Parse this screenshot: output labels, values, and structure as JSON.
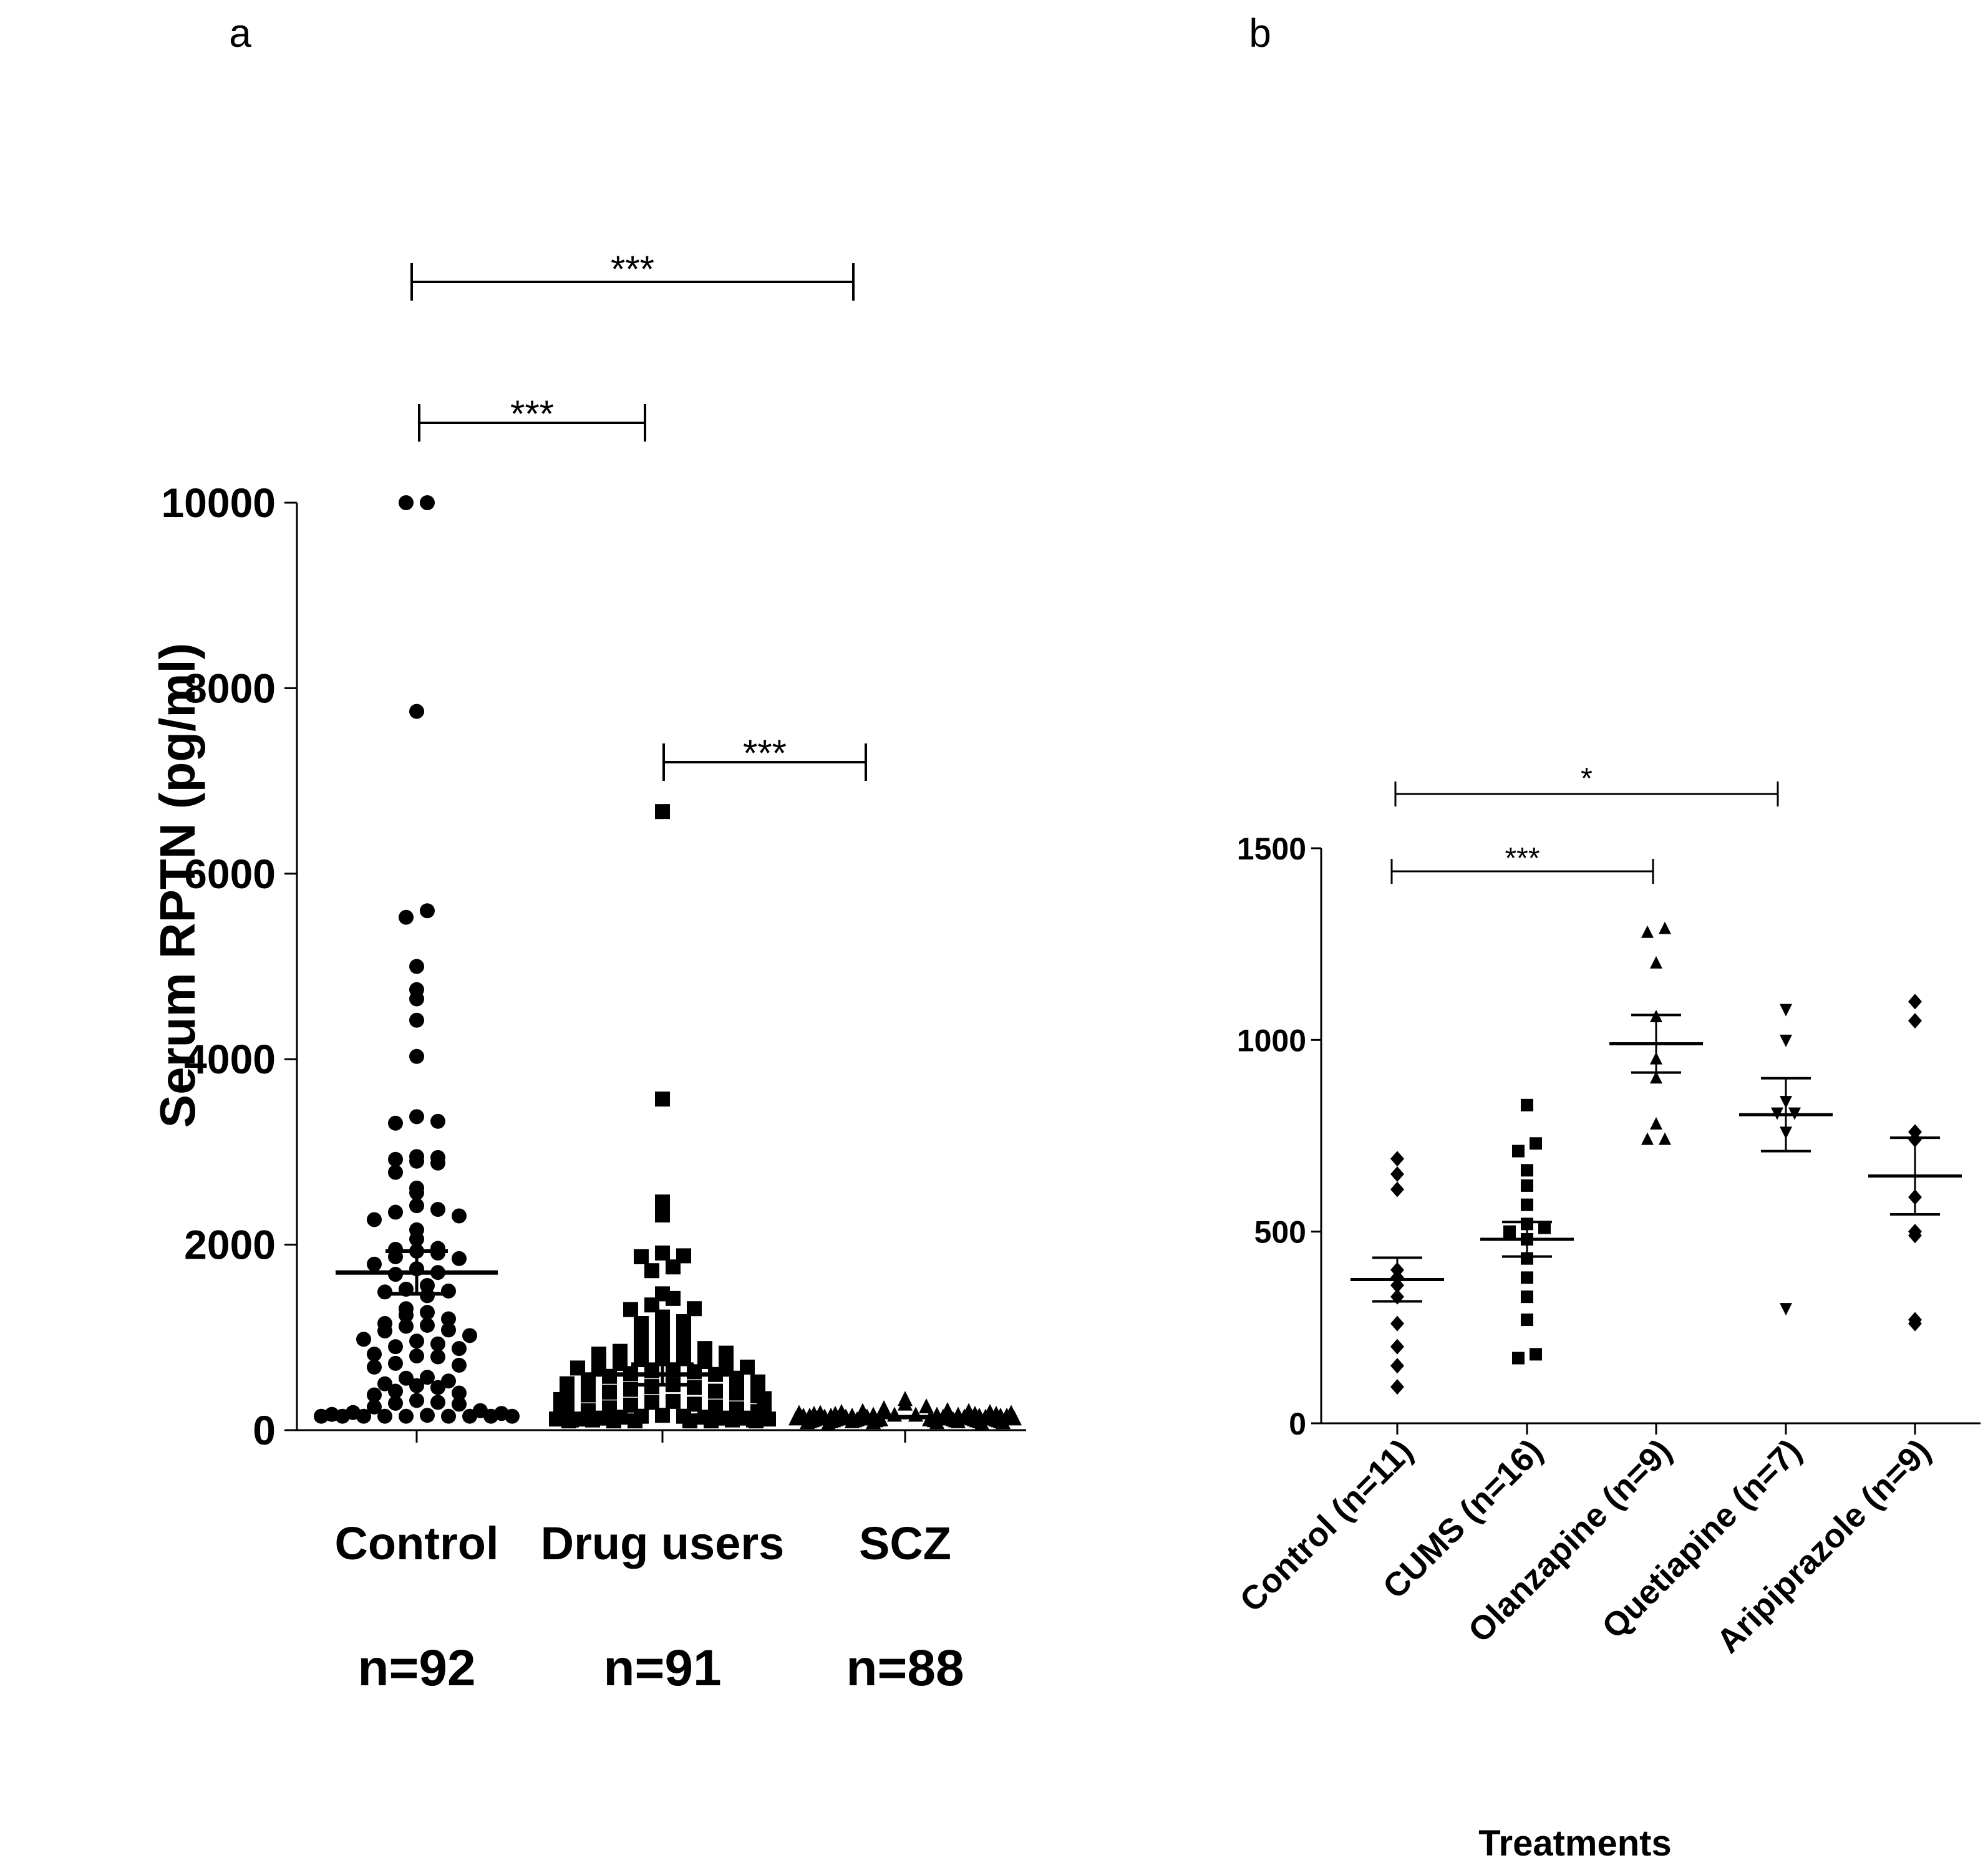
{
  "chart_data": [
    {
      "panel": "a",
      "type": "scatter",
      "title": "",
      "ylabel": "Serum RPTN (pg/ml)",
      "xlabel": "",
      "ylim": [
        0,
        10000
      ],
      "yticks": [
        "0",
        "2000",
        "4000",
        "6000",
        "8000",
        "10000"
      ],
      "marker_color": "#000000",
      "groups": [
        {
          "name": "Control",
          "n_label": "n=92",
          "marker": "circle",
          "mean": 1700,
          "sem": 230,
          "values": [
            10000,
            10000,
            7750,
            5600,
            5530,
            5000,
            4750,
            4650,
            4420,
            4030,
            3380,
            3330,
            3310,
            2950,
            2940,
            2920,
            2900,
            2880,
            2780,
            2610,
            2560,
            2420,
            2380,
            2350,
            2310,
            2270,
            2160,
            2060,
            1960,
            1950,
            1930,
            1910,
            1870,
            1850,
            1790,
            1740,
            1700,
            1680,
            1560,
            1520,
            1500,
            1490,
            1450,
            1310,
            1270,
            1240,
            1200,
            1150,
            1130,
            1120,
            1080,
            1070,
            1020,
            980,
            960,
            930,
            900,
            880,
            820,
            800,
            790,
            720,
            700,
            680,
            570,
            560,
            530,
            500,
            480,
            460,
            420,
            400,
            380,
            320,
            300,
            290,
            280,
            250,
            210,
            190,
            180,
            170,
            160,
            150,
            150,
            150,
            150,
            150,
            150,
            150,
            150,
            150
          ]
        },
        {
          "name": "Drug users",
          "n_label": "n=91",
          "marker": "square",
          "mean": 600,
          "sem": 110,
          "values": [
            6670,
            3570,
            2460,
            2320,
            1910,
            1880,
            1870,
            1760,
            1720,
            1470,
            1420,
            1350,
            1310,
            1300,
            1220,
            1170,
            1150,
            1090,
            1060,
            1050,
            950,
            920,
            900,
            880,
            850,
            830,
            820,
            800,
            790,
            760,
            740,
            720,
            700,
            690,
            680,
            670,
            650,
            640,
            630,
            610,
            600,
            580,
            560,
            540,
            520,
            500,
            490,
            470,
            460,
            440,
            420,
            410,
            400,
            380,
            370,
            350,
            340,
            330,
            310,
            300,
            280,
            270,
            250,
            240,
            230,
            210,
            200,
            190,
            180,
            170,
            160,
            150,
            150,
            140,
            140,
            130,
            130,
            130,
            120,
            120,
            120,
            110,
            110,
            110,
            110,
            100,
            100,
            100,
            100,
            100,
            100
          ]
        },
        {
          "name": "SCZ",
          "n_label": "n=88",
          "marker": "triangle",
          "mean": 140,
          "sem": 8,
          "values": [
            330,
            280,
            250,
            230,
            210,
            200,
            200,
            190,
            190,
            180,
            180,
            180,
            170,
            170,
            170,
            170,
            160,
            160,
            160,
            160,
            160,
            150,
            150,
            150,
            150,
            150,
            150,
            150,
            140,
            140,
            140,
            140,
            140,
            140,
            140,
            140,
            140,
            130,
            130,
            130,
            130,
            130,
            130,
            130,
            130,
            130,
            130,
            120,
            120,
            120,
            120,
            120,
            120,
            120,
            120,
            120,
            120,
            120,
            110,
            110,
            110,
            110,
            110,
            110,
            110,
            110,
            110,
            110,
            100,
            100,
            100,
            100,
            100,
            100,
            100,
            100,
            90,
            90,
            90,
            90,
            90,
            90,
            80,
            80,
            80,
            80,
            70,
            70
          ]
        }
      ],
      "comparisons": [
        {
          "from": "Control",
          "to": "SCZ",
          "label": "***"
        },
        {
          "from": "Control",
          "to": "Drug users",
          "label": "***"
        },
        {
          "from": "Drug users",
          "to": "SCZ",
          "label": "***"
        }
      ]
    },
    {
      "panel": "b",
      "type": "scatter",
      "title": "",
      "ylabel": "",
      "xlabel": "Treatments",
      "ylim": [
        0,
        1500
      ],
      "yticks": [
        "0",
        "500",
        "1000",
        "1500"
      ],
      "marker_color": "#000000",
      "groups": [
        {
          "name": "Control (n=11)",
          "marker": "diamond",
          "mean": 375,
          "sem": 57,
          "values": [
            690,
            650,
            610,
            400,
            380,
            360,
            330,
            260,
            200,
            150,
            95
          ]
        },
        {
          "name": "CUMS (n=16)",
          "marker": "square",
          "mean": 480,
          "sem": 45,
          "values": [
            830,
            730,
            710,
            660,
            620,
            570,
            520,
            510,
            500,
            480,
            430,
            380,
            330,
            270,
            180,
            170
          ]
        },
        {
          "name": "Olanzapine (n=9)",
          "marker": "triangle",
          "mean": 990,
          "sem": 75,
          "values": [
            1290,
            1280,
            1200,
            1060,
            950,
            900,
            780,
            740,
            740
          ]
        },
        {
          "name": "Quetiapine (n=7)",
          "marker": "triangle-down",
          "mean": 805,
          "sem": 95,
          "values": [
            1080,
            1000,
            840,
            810,
            810,
            760,
            300
          ]
        },
        {
          "name": "Aripiprazole (n=9)",
          "marker": "diamond",
          "mean": 645,
          "sem": 100,
          "values": [
            1100,
            1050,
            760,
            740,
            590,
            500,
            490,
            270,
            260
          ]
        }
      ],
      "comparisons": [
        {
          "from": "Control (n=11)",
          "to": "Quetiapine (n=7)",
          "label": "*"
        },
        {
          "from": "Control (n=11)",
          "to": "Olanzapine (n=9)",
          "label": "***"
        }
      ]
    }
  ],
  "panel_labels": [
    "a",
    "b"
  ]
}
